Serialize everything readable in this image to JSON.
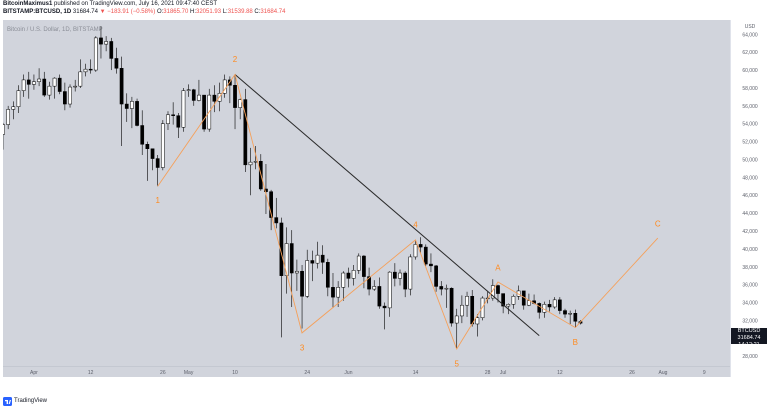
{
  "header": {
    "publisher": "BitcoinMaximus1",
    "published_text": "published on TradingView.com, July 16, 2021 09:47:40 CEST",
    "symbol": "BITSTAMP:BTCUSD, 1D",
    "last": "31684.74",
    "change_arrow": "▼",
    "change": "−183.91 (−0.58%)",
    "open_label": "O:",
    "open": "31865.70",
    "high_label": "H:",
    "high": "32051.93",
    "low_label": "L:",
    "low": "31539.88",
    "close_label": "C:",
    "close": "31684.74"
  },
  "watermark": "Bitcoin / U.S. Dollar, 1D, BITSTAMP",
  "price_tag": {
    "symbol": "BTCUSD",
    "price": "31684.74",
    "countdown": "14:12:21"
  },
  "footer": {
    "brand": "TradingView"
  },
  "colors": {
    "background": "#d1d4dc",
    "bull": "#ffffff",
    "bear": "#000000",
    "wave": "#f5a05a",
    "wave_label": "#ff8a1f",
    "trendline": "#2a2a2a",
    "axis_text": "#5d606b"
  },
  "chart_data": {
    "type": "candlestick",
    "title": "Bitcoin / U.S. Dollar, 1D, BITSTAMP",
    "y_axis": {
      "currency": "USD",
      "ticks": [
        28000,
        30000,
        32000,
        34000,
        36000,
        38000,
        40000,
        42000,
        44000,
        46000,
        48000,
        50000,
        52000,
        54000,
        56000,
        58000,
        60000,
        62000,
        64000
      ],
      "range": [
        26900,
        65600
      ]
    },
    "x_axis": {
      "ticks": [
        {
          "date": "2021-04-01",
          "label": "Apr"
        },
        {
          "date": "2021-04-12",
          "label": "12"
        },
        {
          "date": "2021-04-26",
          "label": "26"
        },
        {
          "date": "2021-05-01",
          "label": "May"
        },
        {
          "date": "2021-05-10",
          "label": "10"
        },
        {
          "date": "2021-05-24",
          "label": "24"
        },
        {
          "date": "2021-06-01",
          "label": "Jun"
        },
        {
          "date": "2021-06-14",
          "label": "14"
        },
        {
          "date": "2021-06-28",
          "label": "28"
        },
        {
          "date": "2021-07-01",
          "label": "Jul"
        },
        {
          "date": "2021-07-12",
          "label": "12"
        },
        {
          "date": "2021-07-26",
          "label": "26"
        },
        {
          "date": "2021-08-01",
          "label": "Aug"
        },
        {
          "date": "2021-08-09",
          "label": "9"
        }
      ],
      "range": [
        "2021-03-26",
        "2021-08-14"
      ]
    },
    "candles": [
      {
        "date": "2021-03-26",
        "open": 52800,
        "high": 54100,
        "low": 51100,
        "close": 53900
      },
      {
        "date": "2021-03-27",
        "open": 53900,
        "high": 56000,
        "low": 53400,
        "close": 55600
      },
      {
        "date": "2021-03-28",
        "open": 55600,
        "high": 56500,
        "low": 54500,
        "close": 55900
      },
      {
        "date": "2021-03-29",
        "open": 55900,
        "high": 58300,
        "low": 55200,
        "close": 57700
      },
      {
        "date": "2021-03-30",
        "open": 57700,
        "high": 59500,
        "low": 57000,
        "close": 58900
      },
      {
        "date": "2021-03-31",
        "open": 58900,
        "high": 59800,
        "low": 56800,
        "close": 58400
      },
      {
        "date": "2021-04-01",
        "open": 58400,
        "high": 59500,
        "low": 57800,
        "close": 58700
      },
      {
        "date": "2021-04-02",
        "open": 58700,
        "high": 60200,
        "low": 58200,
        "close": 59000
      },
      {
        "date": "2021-04-03",
        "open": 59000,
        "high": 59800,
        "low": 57000,
        "close": 57200
      },
      {
        "date": "2021-04-04",
        "open": 57200,
        "high": 58700,
        "low": 56700,
        "close": 58200
      },
      {
        "date": "2021-04-05",
        "open": 58200,
        "high": 59200,
        "low": 56800,
        "close": 59100
      },
      {
        "date": "2021-04-06",
        "open": 59100,
        "high": 59500,
        "low": 57300,
        "close": 57600
      },
      {
        "date": "2021-04-07",
        "open": 57600,
        "high": 58600,
        "low": 55500,
        "close": 56200
      },
      {
        "date": "2021-04-08",
        "open": 56200,
        "high": 58400,
        "low": 55800,
        "close": 58100
      },
      {
        "date": "2021-04-09",
        "open": 58100,
        "high": 58900,
        "low": 57600,
        "close": 58200
      },
      {
        "date": "2021-04-10",
        "open": 58200,
        "high": 61200,
        "low": 58000,
        "close": 59800
      },
      {
        "date": "2021-04-11",
        "open": 59800,
        "high": 60700,
        "low": 59300,
        "close": 60100
      },
      {
        "date": "2021-04-12",
        "open": 60100,
        "high": 61200,
        "low": 59600,
        "close": 60000
      },
      {
        "date": "2021-04-13",
        "open": 60000,
        "high": 63800,
        "low": 59800,
        "close": 63600
      },
      {
        "date": "2021-04-14",
        "open": 63600,
        "high": 64900,
        "low": 61300,
        "close": 62900
      },
      {
        "date": "2021-04-15",
        "open": 62900,
        "high": 63800,
        "low": 62100,
        "close": 63200
      },
      {
        "date": "2021-04-16",
        "open": 63200,
        "high": 63600,
        "low": 60000,
        "close": 61300
      },
      {
        "date": "2021-04-17",
        "open": 61300,
        "high": 62500,
        "low": 59600,
        "close": 60200
      },
      {
        "date": "2021-04-18",
        "open": 60200,
        "high": 61500,
        "low": 51500,
        "close": 56200
      },
      {
        "date": "2021-04-19",
        "open": 56200,
        "high": 57400,
        "low": 54200,
        "close": 55700
      },
      {
        "date": "2021-04-20",
        "open": 55700,
        "high": 57000,
        "low": 53500,
        "close": 56500
      },
      {
        "date": "2021-04-21",
        "open": 56500,
        "high": 56800,
        "low": 53700,
        "close": 53800
      },
      {
        "date": "2021-04-22",
        "open": 53800,
        "high": 55500,
        "low": 50500,
        "close": 51700
      },
      {
        "date": "2021-04-23",
        "open": 51700,
        "high": 52000,
        "low": 47600,
        "close": 51200
      },
      {
        "date": "2021-04-24",
        "open": 51200,
        "high": 51200,
        "low": 48800,
        "close": 50100
      },
      {
        "date": "2021-04-25",
        "open": 50100,
        "high": 50500,
        "low": 47000,
        "close": 49100
      },
      {
        "date": "2021-04-26",
        "open": 49100,
        "high": 54400,
        "low": 48800,
        "close": 54000
      },
      {
        "date": "2021-04-27",
        "open": 54000,
        "high": 55400,
        "low": 53300,
        "close": 55000
      },
      {
        "date": "2021-04-28",
        "open": 55000,
        "high": 56400,
        "low": 53900,
        "close": 54900
      },
      {
        "date": "2021-04-29",
        "open": 54900,
        "high": 55200,
        "low": 52400,
        "close": 53600
      },
      {
        "date": "2021-04-30",
        "open": 53600,
        "high": 58000,
        "low": 53100,
        "close": 57700
      },
      {
        "date": "2021-05-01",
        "open": 57700,
        "high": 58400,
        "low": 57000,
        "close": 57800
      },
      {
        "date": "2021-05-02",
        "open": 57800,
        "high": 57900,
        "low": 56000,
        "close": 56600
      },
      {
        "date": "2021-05-03",
        "open": 56600,
        "high": 58900,
        "low": 56500,
        "close": 57200
      },
      {
        "date": "2021-05-04",
        "open": 57200,
        "high": 57200,
        "low": 53100,
        "close": 53400
      },
      {
        "date": "2021-05-05",
        "open": 53400,
        "high": 57900,
        "low": 53100,
        "close": 57200
      },
      {
        "date": "2021-05-06",
        "open": 57200,
        "high": 58300,
        "low": 55300,
        "close": 56500
      },
      {
        "date": "2021-05-07",
        "open": 56500,
        "high": 58600,
        "low": 55400,
        "close": 57400
      },
      {
        "date": "2021-05-08",
        "open": 57400,
        "high": 59500,
        "low": 56900,
        "close": 58900
      },
      {
        "date": "2021-05-09",
        "open": 58900,
        "high": 59300,
        "low": 56300,
        "close": 58300
      },
      {
        "date": "2021-05-10",
        "open": 58300,
        "high": 59500,
        "low": 53400,
        "close": 55800
      },
      {
        "date": "2021-05-11",
        "open": 55800,
        "high": 56800,
        "low": 54500,
        "close": 56700
      },
      {
        "date": "2021-05-12",
        "open": 56700,
        "high": 57900,
        "low": 48600,
        "close": 49400
      },
      {
        "date": "2021-05-13",
        "open": 49400,
        "high": 51300,
        "low": 46000,
        "close": 49700
      },
      {
        "date": "2021-05-14",
        "open": 49700,
        "high": 51500,
        "low": 48900,
        "close": 49800
      },
      {
        "date": "2021-05-15",
        "open": 49800,
        "high": 50600,
        "low": 46500,
        "close": 46700
      },
      {
        "date": "2021-05-16",
        "open": 46700,
        "high": 49500,
        "low": 43900,
        "close": 46400
      },
      {
        "date": "2021-05-17",
        "open": 46400,
        "high": 46600,
        "low": 42100,
        "close": 43500
      },
      {
        "date": "2021-05-18",
        "open": 43500,
        "high": 45700,
        "low": 42300,
        "close": 42900
      },
      {
        "date": "2021-05-19",
        "open": 42900,
        "high": 43500,
        "low": 30100,
        "close": 37000
      },
      {
        "date": "2021-05-20",
        "open": 37000,
        "high": 42400,
        "low": 35000,
        "close": 40600
      },
      {
        "date": "2021-05-21",
        "open": 40600,
        "high": 42100,
        "low": 33500,
        "close": 37300
      },
      {
        "date": "2021-05-22",
        "open": 37300,
        "high": 38800,
        "low": 35300,
        "close": 37500
      },
      {
        "date": "2021-05-23",
        "open": 37500,
        "high": 38200,
        "low": 31100,
        "close": 34700
      },
      {
        "date": "2021-05-24",
        "open": 34700,
        "high": 39900,
        "low": 34500,
        "close": 38700
      },
      {
        "date": "2021-05-25",
        "open": 38700,
        "high": 39800,
        "low": 36400,
        "close": 38400
      },
      {
        "date": "2021-05-26",
        "open": 38400,
        "high": 40800,
        "low": 37800,
        "close": 39300
      },
      {
        "date": "2021-05-27",
        "open": 39300,
        "high": 40400,
        "low": 37200,
        "close": 38500
      },
      {
        "date": "2021-05-28",
        "open": 38500,
        "high": 38900,
        "low": 34700,
        "close": 35700
      },
      {
        "date": "2021-05-29",
        "open": 35700,
        "high": 37300,
        "low": 33400,
        "close": 34600
      },
      {
        "date": "2021-05-30",
        "open": 34600,
        "high": 36400,
        "low": 33500,
        "close": 35700
      },
      {
        "date": "2021-05-31",
        "open": 35700,
        "high": 37500,
        "low": 34200,
        "close": 37300
      },
      {
        "date": "2021-06-01",
        "open": 37300,
        "high": 37900,
        "low": 35700,
        "close": 36700
      },
      {
        "date": "2021-06-02",
        "open": 36700,
        "high": 38200,
        "low": 35900,
        "close": 37600
      },
      {
        "date": "2021-06-03",
        "open": 37600,
        "high": 39500,
        "low": 37200,
        "close": 39200
      },
      {
        "date": "2021-06-04",
        "open": 39200,
        "high": 39300,
        "low": 35600,
        "close": 36900
      },
      {
        "date": "2021-06-05",
        "open": 36900,
        "high": 37900,
        "low": 34800,
        "close": 35500
      },
      {
        "date": "2021-06-06",
        "open": 35500,
        "high": 36500,
        "low": 35300,
        "close": 35800
      },
      {
        "date": "2021-06-07",
        "open": 35800,
        "high": 36800,
        "low": 33300,
        "close": 33600
      },
      {
        "date": "2021-06-08",
        "open": 33600,
        "high": 34000,
        "low": 31000,
        "close": 33400
      },
      {
        "date": "2021-06-09",
        "open": 33400,
        "high": 37500,
        "low": 32400,
        "close": 37400
      },
      {
        "date": "2021-06-10",
        "open": 37400,
        "high": 38400,
        "low": 35800,
        "close": 36700
      },
      {
        "date": "2021-06-11",
        "open": 36700,
        "high": 37700,
        "low": 35900,
        "close": 37300
      },
      {
        "date": "2021-06-12",
        "open": 37300,
        "high": 37500,
        "low": 34600,
        "close": 35500
      },
      {
        "date": "2021-06-13",
        "open": 35500,
        "high": 39400,
        "low": 34800,
        "close": 39100
      },
      {
        "date": "2021-06-14",
        "open": 39100,
        "high": 41000,
        "low": 38800,
        "close": 40500
      },
      {
        "date": "2021-06-15",
        "open": 40500,
        "high": 41300,
        "low": 39600,
        "close": 40200
      },
      {
        "date": "2021-06-16",
        "open": 40200,
        "high": 40500,
        "low": 38100,
        "close": 38300
      },
      {
        "date": "2021-06-17",
        "open": 38300,
        "high": 39500,
        "low": 37400,
        "close": 38100
      },
      {
        "date": "2021-06-18",
        "open": 38100,
        "high": 38200,
        "low": 35200,
        "close": 35800
      },
      {
        "date": "2021-06-19",
        "open": 35800,
        "high": 36400,
        "low": 34800,
        "close": 35500
      },
      {
        "date": "2021-06-20",
        "open": 35500,
        "high": 36000,
        "low": 33400,
        "close": 35600
      },
      {
        "date": "2021-06-21",
        "open": 35600,
        "high": 35700,
        "low": 31300,
        "close": 31700
      },
      {
        "date": "2021-06-22",
        "open": 31700,
        "high": 33300,
        "low": 28800,
        "close": 32500
      },
      {
        "date": "2021-06-23",
        "open": 32500,
        "high": 34800,
        "low": 31700,
        "close": 33700
      },
      {
        "date": "2021-06-24",
        "open": 33700,
        "high": 35200,
        "low": 32400,
        "close": 34700
      },
      {
        "date": "2021-06-25",
        "open": 34700,
        "high": 35400,
        "low": 31300,
        "close": 31600
      },
      {
        "date": "2021-06-26",
        "open": 31600,
        "high": 32700,
        "low": 30200,
        "close": 32300
      },
      {
        "date": "2021-06-27",
        "open": 32300,
        "high": 34700,
        "low": 32000,
        "close": 34500
      },
      {
        "date": "2021-06-28",
        "open": 34500,
        "high": 35300,
        "low": 33900,
        "close": 34500
      },
      {
        "date": "2021-06-29",
        "open": 34500,
        "high": 36600,
        "low": 34200,
        "close": 35900
      },
      {
        "date": "2021-06-30",
        "open": 35900,
        "high": 36000,
        "low": 34000,
        "close": 35000
      },
      {
        "date": "2021-07-01",
        "open": 35000,
        "high": 35000,
        "low": 32800,
        "close": 33600
      },
      {
        "date": "2021-07-02",
        "open": 33600,
        "high": 33900,
        "low": 32700,
        "close": 33800
      },
      {
        "date": "2021-07-03",
        "open": 33800,
        "high": 34900,
        "low": 33300,
        "close": 34700
      },
      {
        "date": "2021-07-04",
        "open": 34700,
        "high": 35900,
        "low": 34300,
        "close": 35300
      },
      {
        "date": "2021-07-05",
        "open": 35300,
        "high": 35300,
        "low": 33200,
        "close": 33700
      },
      {
        "date": "2021-07-06",
        "open": 33700,
        "high": 35000,
        "low": 33600,
        "close": 34200
      },
      {
        "date": "2021-07-07",
        "open": 34200,
        "high": 34900,
        "low": 33800,
        "close": 33900
      },
      {
        "date": "2021-07-08",
        "open": 33900,
        "high": 34000,
        "low": 32200,
        "close": 32900
      },
      {
        "date": "2021-07-09",
        "open": 32900,
        "high": 34100,
        "low": 32300,
        "close": 33800
      },
      {
        "date": "2021-07-10",
        "open": 33800,
        "high": 34300,
        "low": 33000,
        "close": 33500
      },
      {
        "date": "2021-07-11",
        "open": 33500,
        "high": 34600,
        "low": 33300,
        "close": 34300
      },
      {
        "date": "2021-07-12",
        "open": 34300,
        "high": 34600,
        "low": 32700,
        "close": 33100
      },
      {
        "date": "2021-07-13",
        "open": 33100,
        "high": 33300,
        "low": 32300,
        "close": 32700
      },
      {
        "date": "2021-07-14",
        "open": 32700,
        "high": 33100,
        "low": 31600,
        "close": 32800
      },
      {
        "date": "2021-07-15",
        "open": 32800,
        "high": 33200,
        "low": 31200,
        "close": 31900
      },
      {
        "date": "2021-07-16",
        "open": 31866,
        "high": 32052,
        "low": 31540,
        "close": 31685
      }
    ],
    "trendline": [
      {
        "date": "2021-05-10",
        "price": 59500
      },
      {
        "date": "2021-07-08",
        "price": 30300
      }
    ],
    "wave_path": [
      {
        "date": "2021-04-25",
        "price": 47000
      },
      {
        "date": "2021-05-10",
        "price": 59500
      },
      {
        "date": "2021-05-23",
        "price": 30600
      },
      {
        "date": "2021-06-14",
        "price": 41000
      },
      {
        "date": "2021-06-22",
        "price": 28800
      },
      {
        "date": "2021-06-30",
        "price": 36300
      },
      {
        "date": "2021-07-15",
        "price": 31200
      },
      {
        "date": "2021-07-31",
        "price": 41200
      }
    ],
    "wave_labels": [
      {
        "text": "1",
        "date": "2021-04-25",
        "price": 45800,
        "anchor": "below"
      },
      {
        "text": "2",
        "date": "2021-05-10",
        "price": 60900,
        "anchor": "above"
      },
      {
        "text": "3",
        "date": "2021-05-23",
        "price": 29300,
        "anchor": "below"
      },
      {
        "text": "4",
        "date": "2021-06-14",
        "price": 42400,
        "anchor": "above"
      },
      {
        "text": "5",
        "date": "2021-06-22",
        "price": 27500,
        "anchor": "below"
      },
      {
        "text": "A",
        "date": "2021-06-30",
        "price": 37600,
        "anchor": "above"
      },
      {
        "text": "B",
        "date": "2021-07-15",
        "price": 29900,
        "anchor": "below"
      },
      {
        "text": "C",
        "date": "2021-07-31",
        "price": 42500,
        "anchor": "above"
      }
    ]
  }
}
